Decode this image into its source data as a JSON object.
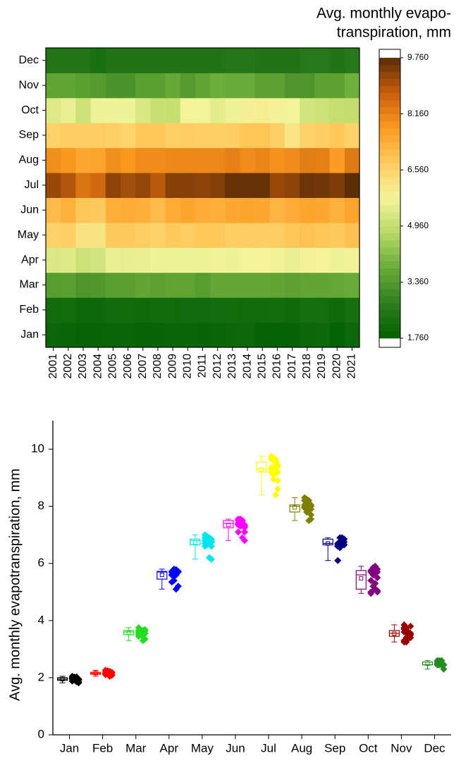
{
  "chart_data": [
    {
      "type": "heatmap",
      "colorbar_title": [
        "Avg. monthly evapo-",
        "transpiration, mm"
      ],
      "x": [
        "2001",
        "2002",
        "2003",
        "2004",
        "2005",
        "2006",
        "2007",
        "2008",
        "2009",
        "2010",
        "2011",
        "2012",
        "2013",
        "2014",
        "2015",
        "2016",
        "2017",
        "2018",
        "2019",
        "2020",
        "2021"
      ],
      "y": [
        "Jan",
        "Feb",
        "Mar",
        "Apr",
        "May",
        "Jun",
        "Jul",
        "Aug",
        "Sep",
        "Oct",
        "Nov",
        "Dec"
      ],
      "values": [
        [
          1.98,
          1.95,
          1.9,
          1.92,
          1.96,
          1.95,
          1.91,
          1.94,
          1.95,
          1.96,
          1.93,
          1.95,
          2.0,
          2.02,
          1.86,
          1.85,
          1.88,
          2.01,
          2.03,
          1.82,
          2.05
        ],
        [
          2.15,
          2.2,
          2.05,
          2.08,
          2.12,
          2.14,
          2.1,
          2.16,
          2.13,
          2.15,
          2.12,
          2.18,
          2.2,
          2.14,
          2.17,
          2.19,
          2.11,
          2.24,
          2.22,
          2.1,
          2.26
        ],
        [
          3.45,
          3.5,
          3.3,
          3.35,
          3.5,
          3.52,
          3.62,
          3.55,
          3.6,
          3.6,
          3.45,
          3.65,
          3.65,
          3.66,
          3.66,
          3.64,
          3.55,
          3.62,
          3.63,
          3.68,
          3.75
        ],
        [
          5.35,
          5.4,
          5.1,
          5.2,
          5.6,
          5.55,
          5.6,
          5.7,
          5.7,
          5.7,
          5.7,
          5.72,
          5.7,
          5.75,
          5.78,
          5.72,
          5.6,
          5.8,
          5.78,
          5.7,
          5.72
        ],
        [
          6.6,
          6.65,
          6.2,
          6.15,
          6.8,
          6.8,
          6.75,
          6.6,
          6.8,
          6.75,
          6.85,
          6.85,
          6.7,
          6.75,
          6.7,
          6.75,
          6.9,
          6.95,
          6.9,
          6.8,
          7.0
        ],
        [
          7.1,
          7.3,
          6.9,
          6.8,
          7.35,
          7.4,
          7.35,
          7.1,
          7.4,
          7.55,
          7.4,
          7.35,
          7.5,
          7.55,
          7.5,
          7.25,
          7.4,
          7.55,
          7.5,
          7.3,
          7.55
        ],
        [
          9.2,
          8.95,
          8.4,
          8.6,
          9.3,
          9.1,
          9.25,
          8.9,
          9.35,
          9.35,
          9.3,
          9.4,
          9.65,
          9.65,
          9.65,
          9.2,
          9.3,
          9.6,
          9.55,
          9.45,
          9.75
        ],
        [
          7.95,
          7.8,
          7.5,
          7.55,
          7.95,
          7.8,
          8.0,
          8.0,
          8.05,
          8.05,
          8.05,
          8.05,
          8.2,
          8.0,
          8.1,
          7.9,
          8.0,
          8.25,
          8.2,
          7.7,
          8.3
        ],
        [
          6.6,
          6.75,
          6.75,
          6.75,
          6.65,
          6.55,
          6.85,
          6.85,
          6.65,
          6.7,
          6.65,
          6.65,
          6.7,
          6.9,
          6.9,
          6.65,
          6.1,
          6.6,
          6.7,
          6.85,
          6.6
        ],
        [
          5.4,
          5.6,
          5.1,
          5.7,
          5.7,
          5.7,
          5.3,
          5.05,
          5.0,
          5.75,
          5.75,
          5.5,
          5.7,
          5.85,
          5.9,
          5.8,
          5.75,
          5.2,
          5.1,
          5.0,
          4.95
        ],
        [
          3.6,
          3.6,
          3.5,
          3.4,
          3.25,
          3.25,
          3.5,
          3.5,
          3.7,
          3.4,
          3.6,
          3.8,
          3.75,
          3.75,
          3.55,
          3.55,
          3.3,
          3.3,
          3.55,
          3.55,
          3.85
        ],
        [
          2.5,
          2.5,
          2.5,
          2.3,
          2.45,
          2.45,
          2.45,
          2.45,
          2.45,
          2.45,
          2.45,
          2.45,
          2.55,
          2.55,
          2.45,
          2.45,
          2.45,
          2.6,
          2.6,
          2.45,
          2.6
        ]
      ],
      "zlim": [
        1.76,
        9.76
      ],
      "zticks": [
        {
          "value": 1.76,
          "label": "1.760"
        },
        {
          "value": 3.36,
          "label": "3.360"
        },
        {
          "value": 4.96,
          "label": "4.960"
        },
        {
          "value": 6.56,
          "label": "6.560"
        },
        {
          "value": 8.16,
          "label": "8.160"
        },
        {
          "value": 9.76,
          "label": "9.760"
        }
      ],
      "colors": [
        "#006000",
        "#2e7d1e",
        "#6aab38",
        "#b8d866",
        "#f4f49a",
        "#ffcc60",
        "#fb9a20",
        "#c8600c",
        "#5c2c06"
      ]
    },
    {
      "type": "box",
      "ylabel": "Avg. monthly evapotranspiration, mm",
      "categories": [
        "Jan",
        "Feb",
        "Mar",
        "Apr",
        "May",
        "Jun",
        "Jul",
        "Aug",
        "Sep",
        "Oct",
        "Nov",
        "Dec"
      ],
      "ylim": [
        0,
        11
      ],
      "yticks": [
        0,
        2,
        4,
        6,
        8,
        10
      ],
      "series": [
        {
          "color": "#000000",
          "box": [
            1.82,
            1.91,
            1.95,
            2.0,
            2.05
          ],
          "mean": 1.95
        },
        {
          "color": "#ff0000",
          "box": [
            2.05,
            2.12,
            2.15,
            2.19,
            2.26
          ],
          "mean": 2.16
        },
        {
          "color": "#22dd22",
          "box": [
            3.3,
            3.5,
            3.6,
            3.65,
            3.75
          ],
          "mean": 3.57
        },
        {
          "color": "#0000ff",
          "box": [
            5.1,
            5.45,
            5.7,
            5.72,
            5.8
          ],
          "mean": 5.6
        },
        {
          "color": "#00e5ee",
          "box": [
            6.15,
            6.65,
            6.8,
            6.85,
            7.0
          ],
          "mean": 6.73
        },
        {
          "color": "#ff00ff",
          "box": [
            6.8,
            7.25,
            7.4,
            7.5,
            7.55
          ],
          "mean": 7.35
        },
        {
          "color": "#ffff00",
          "box": [
            8.4,
            9.2,
            9.3,
            9.55,
            9.75
          ],
          "mean": 9.29
        },
        {
          "color": "#808000",
          "box": [
            7.5,
            7.8,
            8.0,
            8.05,
            8.3
          ],
          "mean": 7.96
        },
        {
          "color": "#000080",
          "box": [
            6.1,
            6.65,
            6.7,
            6.85,
            6.9
          ],
          "mean": 6.7
        },
        {
          "color": "#800080",
          "box": [
            4.95,
            5.1,
            5.6,
            5.75,
            5.9
          ],
          "mean": 5.48
        },
        {
          "color": "#990000",
          "box": [
            3.25,
            3.45,
            3.55,
            3.65,
            3.85
          ],
          "mean": 3.54
        },
        {
          "color": "#228b22",
          "box": [
            2.3,
            2.45,
            2.45,
            2.55,
            2.6
          ],
          "mean": 2.49
        }
      ]
    }
  ]
}
